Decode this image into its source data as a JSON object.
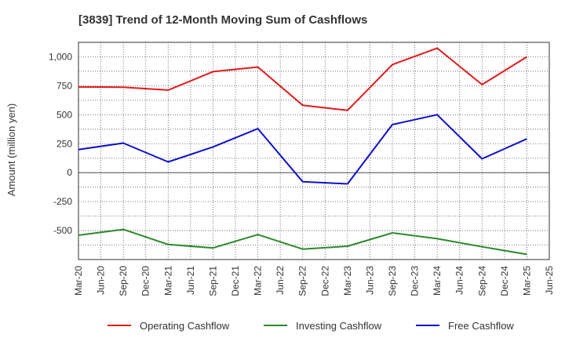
{
  "chart_data": {
    "type": "line",
    "title": "[3839]  Trend of 12-Month Moving Sum of Cashflows",
    "xlabel": "",
    "ylabel": "Amount (million yen)",
    "categories": [
      "Mar-20",
      "Jun-20",
      "Sep-20",
      "Dec-20",
      "Mar-21",
      "Jun-21",
      "Sep-21",
      "Dec-21",
      "Mar-22",
      "Jun-22",
      "Sep-22",
      "Dec-22",
      "Mar-23",
      "Jun-23",
      "Sep-23",
      "Dec-23",
      "Mar-24",
      "Jun-24",
      "Sep-24",
      "Dec-24",
      "Mar-25",
      "Jun-25"
    ],
    "ylim": [
      -750,
      1125
    ],
    "yticks": [
      1000,
      750,
      500,
      250,
      0,
      -250,
      -500
    ],
    "ytick_labels": [
      "1,000",
      "750",
      "500",
      "250",
      "0",
      "-250",
      "-500"
    ],
    "grid": true,
    "legend_position": "bottom",
    "series": [
      {
        "name": "Operating Cashflow",
        "color": "#e31a1c",
        "x": [
          "Mar-20",
          "Sep-20",
          "Mar-21",
          "Sep-21",
          "Mar-22",
          "Sep-22",
          "Mar-23",
          "Sep-23",
          "Mar-24",
          "Sep-24",
          "Mar-25"
        ],
        "values": [
          740,
          738,
          713,
          872,
          912,
          582,
          538,
          933,
          1075,
          760,
          1000
        ]
      },
      {
        "name": "Investing Cashflow",
        "color": "#2a8a2a",
        "x": [
          "Mar-20",
          "Sep-20",
          "Mar-21",
          "Sep-21",
          "Mar-22",
          "Sep-22",
          "Mar-23",
          "Sep-23",
          "Mar-24",
          "Sep-24",
          "Mar-25"
        ],
        "values": [
          -540,
          -490,
          -620,
          -650,
          -535,
          -660,
          -635,
          -520,
          -570,
          -640,
          -705
        ]
      },
      {
        "name": "Free Cashflow",
        "color": "#1010cc",
        "x": [
          "Mar-20",
          "Sep-20",
          "Mar-21",
          "Sep-21",
          "Mar-22",
          "Sep-22",
          "Mar-23",
          "Sep-23",
          "Mar-24",
          "Sep-24",
          "Mar-25"
        ],
        "values": [
          200,
          255,
          93,
          222,
          380,
          -78,
          -97,
          415,
          500,
          120,
          292
        ]
      }
    ]
  }
}
